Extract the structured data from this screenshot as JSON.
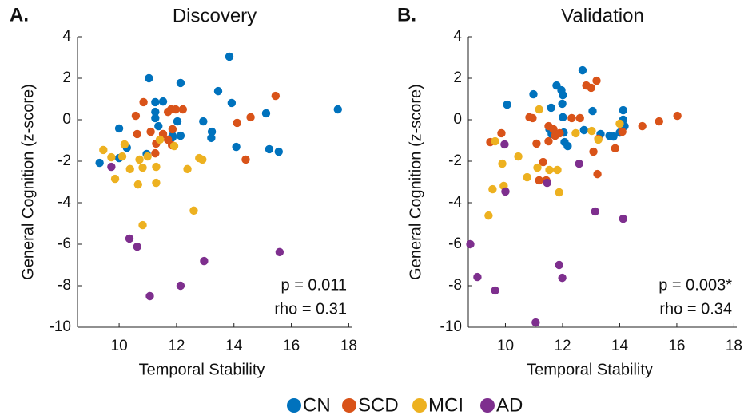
{
  "chart_data": [
    {
      "type": "scatter",
      "panel_label": "A.",
      "title": "Discovery",
      "x_label": "Temporal Stability",
      "y_label": "General Cognition (z-score)",
      "annotations": [
        "p = 0.011",
        "rho = 0.31"
      ],
      "xlim": [
        8.55,
        18.1
      ],
      "ylim": [
        -10,
        4
      ],
      "xticks": [
        10,
        12,
        14,
        16,
        18
      ],
      "yticks": [
        -10,
        -8,
        -6,
        -4,
        -2,
        0,
        2,
        4
      ],
      "series": [
        {
          "name": "CN",
          "color": "#0072bd",
          "x": [
            9.32,
            10.0,
            10.27,
            10.0,
            11.04,
            11.26,
            11.26,
            11.53,
            12.14,
            11.37,
            12.03,
            11.26,
            11.86,
            10.96,
            11.86,
            12.14,
            12.93,
            13.23,
            13.21,
            13.45,
            13.84,
            13.92,
            14.08,
            15.12,
            15.23,
            15.56,
            17.62
          ],
          "values": [
            -2.08,
            -0.42,
            -1.35,
            -1.85,
            2.0,
            0.38,
            0.85,
            0.88,
            1.77,
            -0.31,
            -0.08,
            0.08,
            -0.77,
            -1.65,
            -0.85,
            -0.77,
            -0.08,
            -0.58,
            -0.88,
            1.38,
            3.04,
            0.81,
            -1.31,
            0.31,
            -1.42,
            -1.54,
            0.5
          ]
        },
        {
          "name": "SCD",
          "color": "#d95319",
          "x": [
            10.58,
            10.85,
            11.7,
            11.81,
            11.97,
            12.22,
            11.1,
            11.53,
            11.86,
            11.29,
            11.26,
            11.84,
            14.11,
            14.58,
            14.41,
            15.45,
            11.7,
            10.63
          ],
          "values": [
            0.19,
            0.85,
            0.38,
            0.5,
            0.5,
            0.5,
            -0.58,
            -0.69,
            -0.46,
            -1.15,
            -1.62,
            -1.23,
            -0.15,
            0.12,
            -1.92,
            1.15,
            -0.96,
            -0.69
          ]
        },
        {
          "name": "MCI",
          "color": "#edb120",
          "x": [
            9.45,
            9.73,
            9.86,
            10.11,
            10.19,
            10.38,
            10.71,
            10.66,
            10.82,
            10.99,
            11.29,
            11.29,
            11.42,
            11.92,
            12.38,
            12.9,
            12.79,
            12.6,
            10.82
          ],
          "values": [
            -1.46,
            -1.81,
            -2.85,
            -1.77,
            -1.19,
            -2.38,
            -1.92,
            -3.12,
            -2.31,
            -1.77,
            -2.27,
            -3.04,
            -0.96,
            -1.27,
            -2.38,
            -1.92,
            -1.85,
            -4.38,
            -5.08
          ]
        },
        {
          "name": "AD",
          "color": "#7e2f8e",
          "x": [
            9.73,
            10.36,
            10.63,
            11.07,
            12.14,
            12.96,
            15.59
          ],
          "values": [
            -2.27,
            -5.73,
            -6.12,
            -8.5,
            -8.0,
            -6.81,
            -6.38
          ]
        }
      ]
    },
    {
      "type": "scatter",
      "panel_label": "B.",
      "title": "Validation",
      "x_label": "Temporal Stability",
      "y_label": "General Cognition (z-score)",
      "annotations": [
        "p = 0.003*",
        "rho = 0.34"
      ],
      "xlim": [
        8.7,
        18.1
      ],
      "ylim": [
        -10,
        4
      ],
      "xticks": [
        10,
        12,
        14,
        16,
        18
      ],
      "yticks": [
        -10,
        -8,
        -6,
        -4,
        -2,
        0,
        2,
        4
      ],
      "series": [
        {
          "color": "#0072bd",
          "x": [
            10.06,
            10.98,
            11.6,
            11.79,
            11.96,
            11.99,
            12.01,
            12.04,
            12.07,
            12.18,
            11.54,
            11.62,
            12.01,
            12.7,
            12.75,
            13.05,
            13.64,
            13.78,
            14.0,
            14.12,
            14.12,
            14.17,
            13.33
          ],
          "values": [
            0.73,
            1.23,
            0.58,
            1.65,
            1.42,
            0.77,
            0.12,
            -0.62,
            -1.08,
            -1.27,
            -0.46,
            -0.69,
            1.19,
            2.38,
            -0.5,
            0.42,
            -0.77,
            -0.81,
            -0.62,
            0.46,
            0.0,
            -0.31,
            -0.69
          ]
        },
        {
          "color": "#d95319",
          "x": [
            9.47,
            9.86,
            10.84,
            10.95,
            11.09,
            11.32,
            11.51,
            11.68,
            11.51,
            11.74,
            11.9,
            12.32,
            12.61,
            12.83,
            13.0,
            13.19,
            13.08,
            13.22,
            13.25,
            14.09,
            13.84,
            14.79,
            15.38,
            16.02,
            11.18,
            11.43
          ],
          "values": [
            -1.08,
            -0.65,
            0.12,
            0.08,
            -1.15,
            -2.04,
            -0.31,
            -0.46,
            -1.04,
            -0.77,
            -0.65,
            0.08,
            0.08,
            1.65,
            1.54,
            1.88,
            -1.54,
            -2.62,
            -0.92,
            -0.58,
            -1.38,
            -0.31,
            -0.08,
            0.19,
            -2.92,
            -2.92
          ]
        },
        {
          "color": "#edb120",
          "x": [
            9.41,
            9.55,
            9.64,
            9.89,
            10.45,
            10.76,
            11.12,
            11.18,
            11.54,
            11.82,
            11.88,
            12.46,
            13.02,
            13.25,
            14.0,
            9.94
          ],
          "values": [
            -4.62,
            -3.35,
            -1.04,
            -2.12,
            -1.77,
            -2.77,
            -2.31,
            0.5,
            -2.42,
            -2.42,
            -3.5,
            -0.65,
            -0.54,
            -0.96,
            -0.19,
            -3.19
          ]
        },
        {
          "color": "#7e2f8e",
          "x": [
            8.77,
            9.02,
            9.64,
            10.0,
            9.97,
            11.06,
            11.46,
            11.88,
            11.99,
            12.58,
            13.14,
            14.12
          ],
          "values": [
            -6.0,
            -7.58,
            -8.23,
            -3.46,
            -1.19,
            -9.77,
            -3.04,
            -7.0,
            -7.62,
            -2.12,
            -4.42,
            -4.77
          ]
        }
      ]
    }
  ]
}
